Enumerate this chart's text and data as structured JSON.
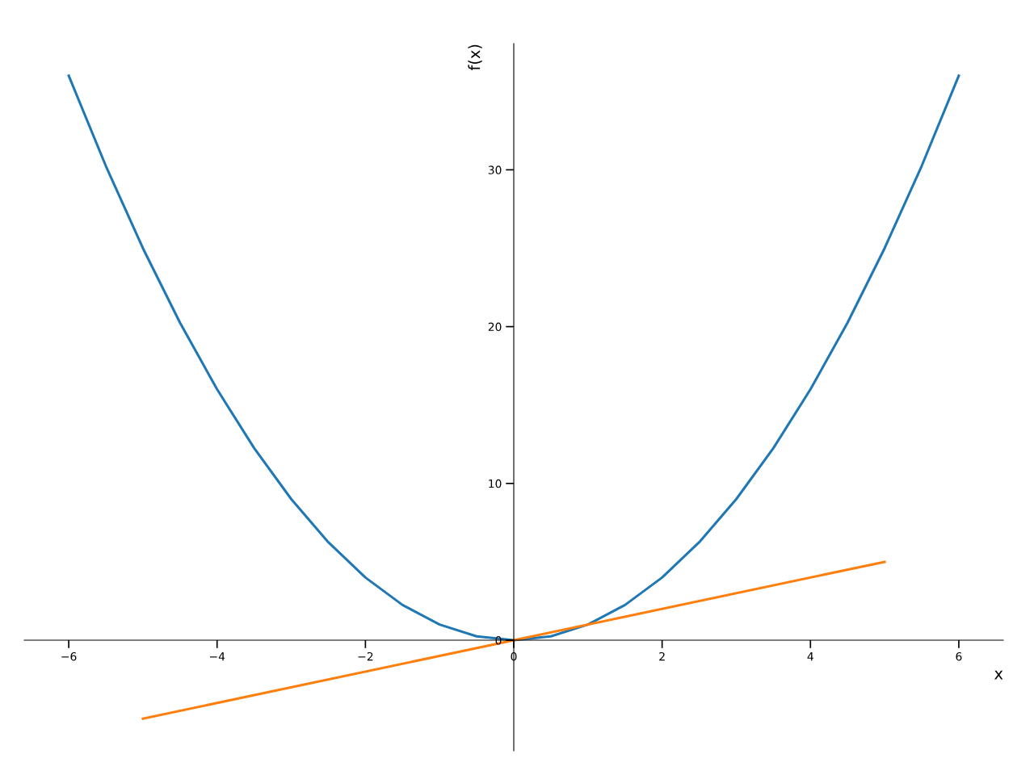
{
  "chart_data": {
    "type": "line",
    "xlabel": "x",
    "ylabel": "f(x)",
    "series": [
      {
        "color": "#1f77b4",
        "x": [
          -6,
          -5.5,
          -5,
          -4.5,
          -4,
          -3.5,
          -3,
          -2.5,
          -2,
          -1.5,
          -1,
          -0.5,
          0,
          0.5,
          1,
          1.5,
          2,
          2.5,
          3,
          3.5,
          4,
          4.5,
          5,
          5.5,
          6
        ],
        "values": [
          36,
          30.25,
          25,
          20.25,
          16,
          12.25,
          9,
          6.25,
          4,
          2.25,
          1,
          0.25,
          0,
          0.25,
          1,
          2.25,
          4,
          6.25,
          9,
          12.25,
          16,
          20.25,
          25,
          30.25,
          36
        ]
      },
      {
        "color": "#ff7f0e",
        "x": [
          -5,
          5
        ],
        "values": [
          -5,
          5
        ]
      }
    ],
    "xlim": [
      -6.6,
      6.6
    ],
    "ylim": [
      -7.05,
      38.05
    ],
    "xticks": [
      {
        "value": -6,
        "label": "−6"
      },
      {
        "value": -4,
        "label": "−4"
      },
      {
        "value": -2,
        "label": "−2"
      },
      0,
      2,
      4,
      6
    ],
    "yticks": [
      0,
      10,
      20,
      30
    ],
    "grid": false
  }
}
